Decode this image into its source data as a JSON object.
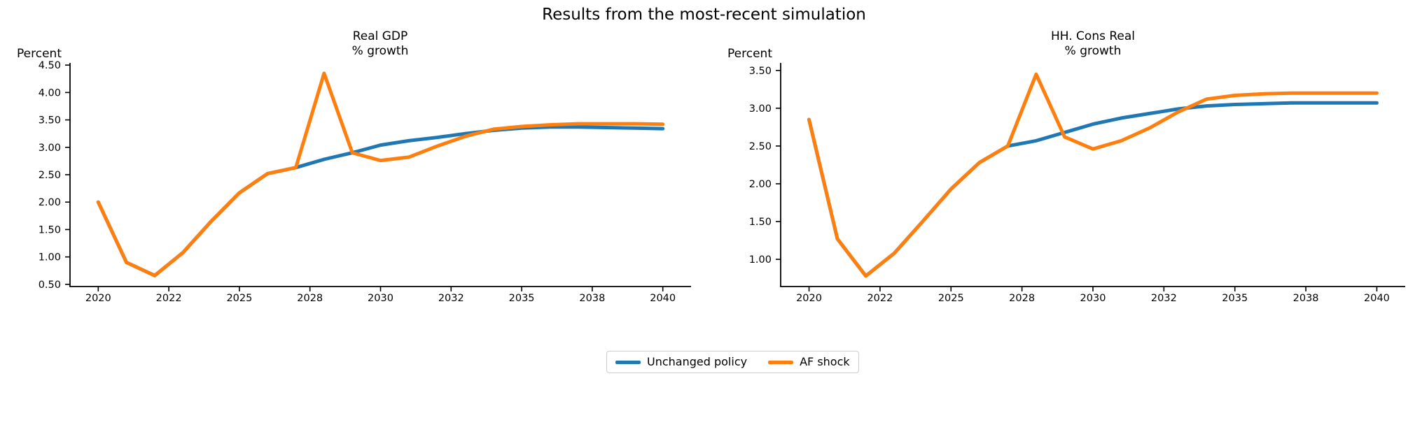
{
  "figure": {
    "title": "Results from the most-recent simulation"
  },
  "legend": {
    "items": [
      {
        "label": "Unchanged policy",
        "color": "#1f77b4"
      },
      {
        "label": "AF shock",
        "color": "#ff7f0e"
      }
    ]
  },
  "chart_data": [
    {
      "type": "line",
      "title_line1": "Real GDP",
      "title_line2": "% growth",
      "ylabel": "Percent",
      "x": [
        2020,
        2021,
        2022,
        2023,
        2024,
        2025,
        2026,
        2027,
        2028,
        2029,
        2030,
        2031,
        2032,
        2033,
        2034,
        2035,
        2036,
        2037,
        2038,
        2039,
        2040
      ],
      "xlim_index": [
        -1,
        21
      ],
      "xticks_index": [
        0,
        2.5,
        5,
        7.5,
        10,
        12.5,
        15,
        17.5,
        20
      ],
      "xtick_labels": [
        "2020",
        "2022",
        "2025",
        "2028",
        "2030",
        "2032",
        "2035",
        "2038",
        "2040"
      ],
      "ylim": [
        0.46,
        4.54
      ],
      "yticks": [
        0.5,
        1.0,
        1.5,
        2.0,
        2.5,
        3.0,
        3.5,
        4.0,
        4.5
      ],
      "ytick_labels": [
        "0.50",
        "1.00",
        "1.50",
        "2.00",
        "2.50",
        "3.00",
        "3.50",
        "4.00",
        "4.50"
      ],
      "grid": false,
      "series": [
        {
          "name": "Unchanged policy",
          "color": "#1f77b4",
          "values": [
            2.0,
            0.9,
            0.66,
            1.08,
            1.65,
            2.17,
            2.52,
            2.63,
            2.78,
            2.9,
            3.04,
            3.12,
            3.18,
            3.25,
            3.31,
            3.35,
            3.37,
            3.37,
            3.36,
            3.35,
            3.34
          ]
        },
        {
          "name": "AF shock",
          "color": "#ff7f0e",
          "values": [
            2.0,
            0.9,
            0.66,
            1.08,
            1.65,
            2.17,
            2.52,
            2.63,
            4.35,
            2.9,
            2.76,
            2.82,
            3.02,
            3.2,
            3.33,
            3.38,
            3.41,
            3.43,
            3.43,
            3.43,
            3.42
          ]
        }
      ]
    },
    {
      "type": "line",
      "title_line1": "HH. Cons Real",
      "title_line2": "% growth",
      "ylabel": "Percent",
      "x": [
        2020,
        2021,
        2022,
        2023,
        2024,
        2025,
        2026,
        2027,
        2028,
        2029,
        2030,
        2031,
        2032,
        2033,
        2034,
        2035,
        2036,
        2037,
        2038,
        2039,
        2040
      ],
      "xlim_index": [
        -1,
        21
      ],
      "xticks_index": [
        0,
        2.5,
        5,
        7.5,
        10,
        12.5,
        15,
        17.5,
        20
      ],
      "xtick_labels": [
        "2020",
        "2022",
        "2025",
        "2028",
        "2030",
        "2032",
        "2035",
        "2038",
        "2040"
      ],
      "ylim": [
        0.64,
        3.6
      ],
      "yticks": [
        1.0,
        1.5,
        2.0,
        2.5,
        3.0,
        3.5
      ],
      "ytick_labels": [
        "1.00",
        "1.50",
        "2.00",
        "2.50",
        "3.00",
        "3.50"
      ],
      "grid": false,
      "series": [
        {
          "name": "Unchanged policy",
          "color": "#1f77b4",
          "values": [
            2.85,
            1.27,
            0.78,
            1.08,
            1.5,
            1.93,
            2.28,
            2.5,
            2.57,
            2.68,
            2.79,
            2.87,
            2.93,
            2.99,
            3.03,
            3.05,
            3.06,
            3.07,
            3.07,
            3.07,
            3.07
          ]
        },
        {
          "name": "AF shock",
          "color": "#ff7f0e",
          "values": [
            2.85,
            1.27,
            0.78,
            1.08,
            1.5,
            1.93,
            2.28,
            2.5,
            3.45,
            2.62,
            2.46,
            2.57,
            2.74,
            2.95,
            3.12,
            3.17,
            3.19,
            3.2,
            3.2,
            3.2,
            3.2
          ]
        }
      ]
    }
  ]
}
